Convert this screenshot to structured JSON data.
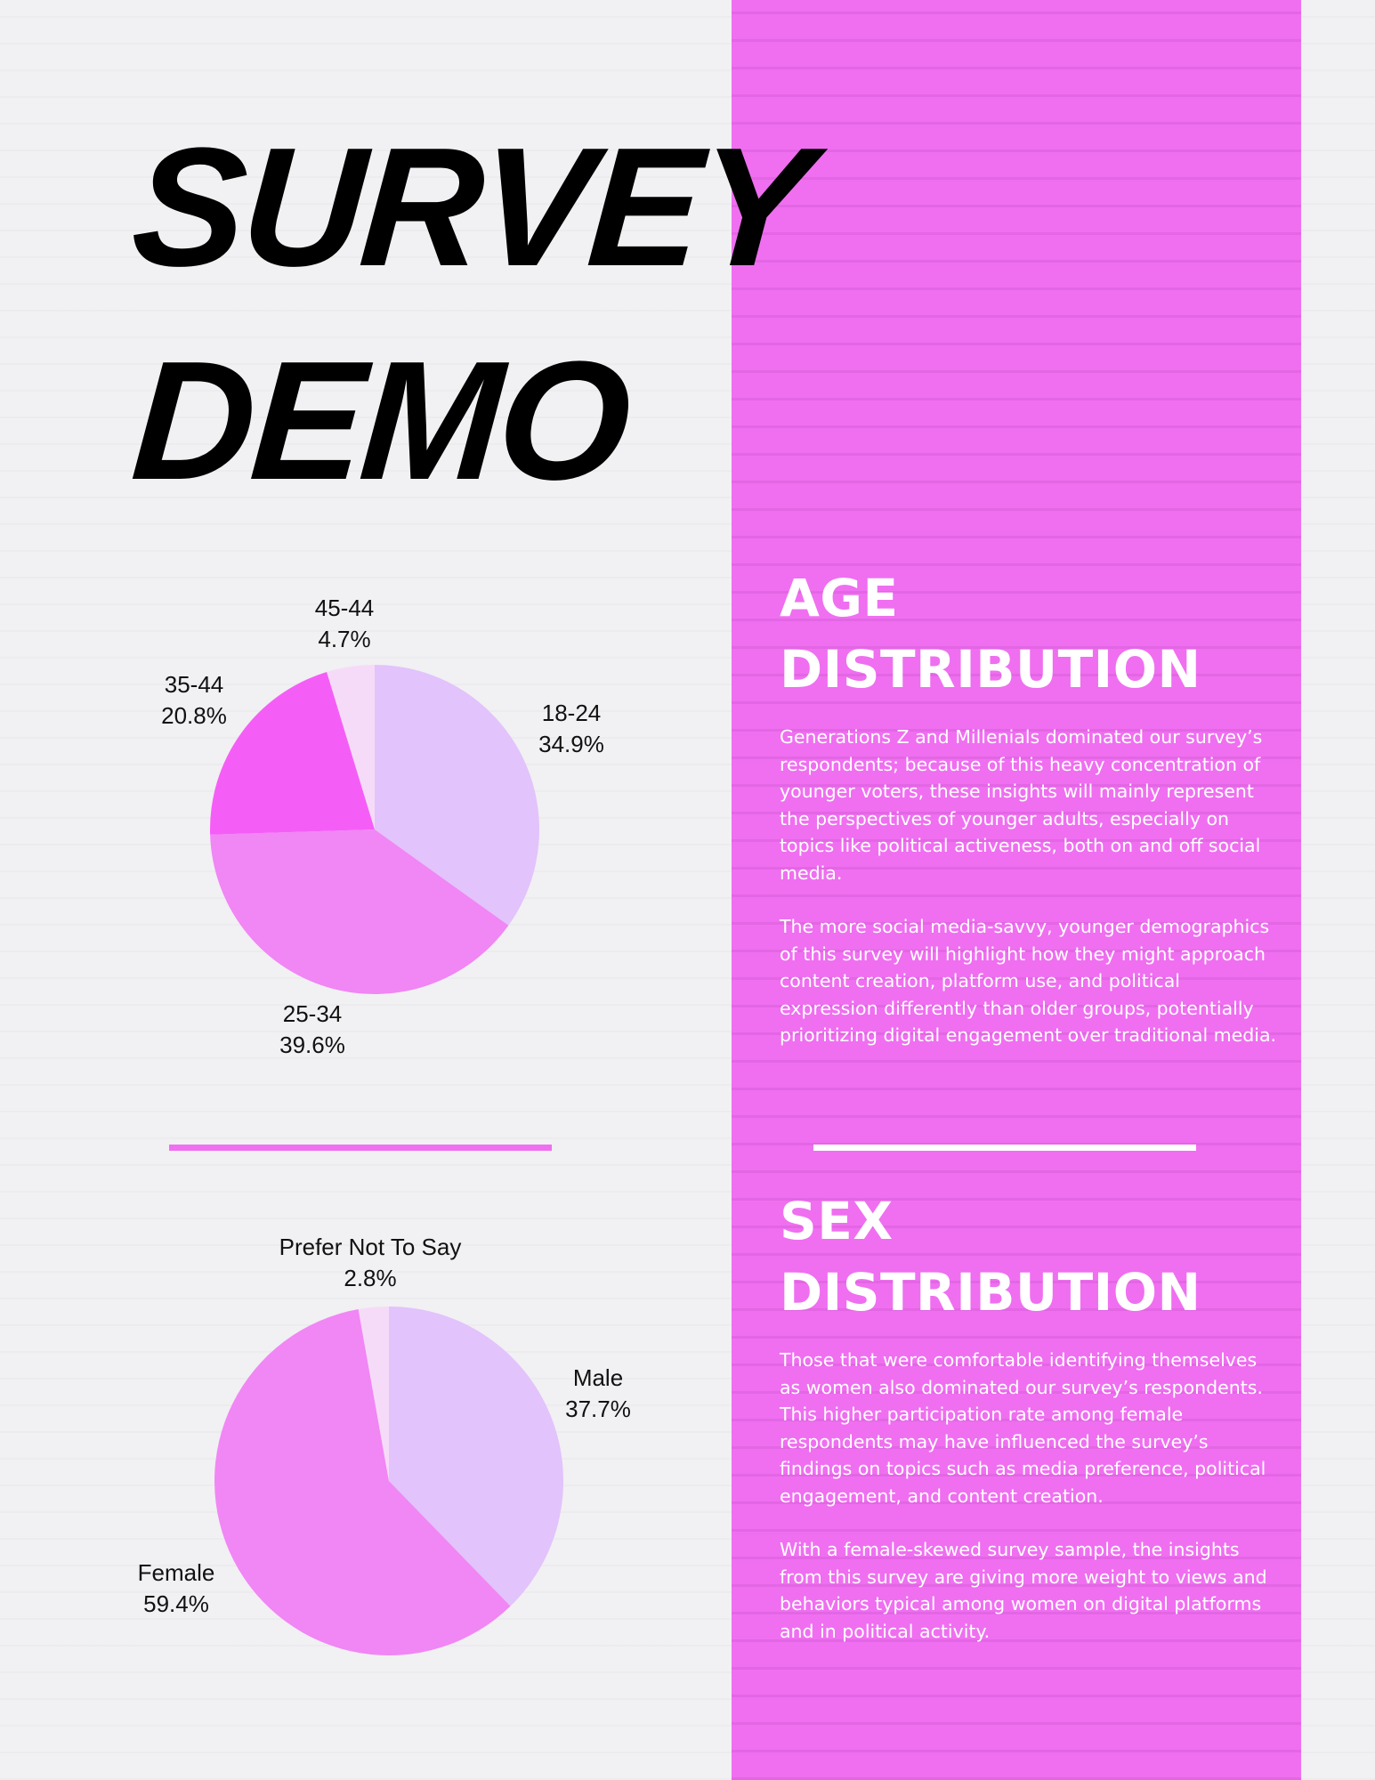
{
  "title": {
    "line1": "SURVEY",
    "line2": "DEMO"
  },
  "colors": {
    "accent": "#ef6ff0",
    "slice_light_lavender": "#e2c3fb",
    "slice_pink": "#f186f5",
    "slice_magenta": "#f55ef6",
    "slice_pale": "#f6dbf8"
  },
  "age_section": {
    "heading_line1": "AGE",
    "heading_line2": "DISTRIBUTION",
    "paragraph1": "Generations Z and Millenials dominated our survey’s respondents; because of this heavy concentration of younger voters, these insights will mainly represent the perspectives of younger adults, especially on topics like political activeness, both on and off social media.",
    "paragraph2": "The more social media-savvy, younger demographics of this survey will highlight how they might approach content creation, platform use, and political expression differently than older groups, potentially prioritizing digital engagement over traditional media."
  },
  "sex_section": {
    "heading_line1": "SEX",
    "heading_line2": "DISTRIBUTION",
    "paragraph1": "Those that were comfortable identifying themselves as women also dominated our survey’s respondents. This higher participation rate among female respondents may have influenced the survey’s findings on topics such as media preference, political engagement, and content creation.",
    "paragraph2": "With a female-skewed survey sample, the insights from this survey are giving more weight to views and behaviors typical among women on digital platforms and in political activity."
  },
  "chart_data": [
    {
      "type": "pie",
      "title": "",
      "categories": [
        "18-24",
        "25-34",
        "35-44",
        "45-44"
      ],
      "values": [
        34.9,
        39.6,
        20.8,
        4.7
      ],
      "labels": [
        "34.9%",
        "39.6%",
        "20.8%",
        "4.7%"
      ],
      "colors": [
        "#e2c3fb",
        "#f186f5",
        "#f55ef6",
        "#f6dbf8"
      ]
    },
    {
      "type": "pie",
      "title": "",
      "categories": [
        "Male",
        "Female",
        "Prefer Not To Say"
      ],
      "values": [
        37.7,
        59.4,
        2.8
      ],
      "labels": [
        "37.7%",
        "59.4%",
        "2.8%"
      ],
      "colors": [
        "#e2c3fb",
        "#f186f5",
        "#f6dbf8"
      ]
    }
  ]
}
